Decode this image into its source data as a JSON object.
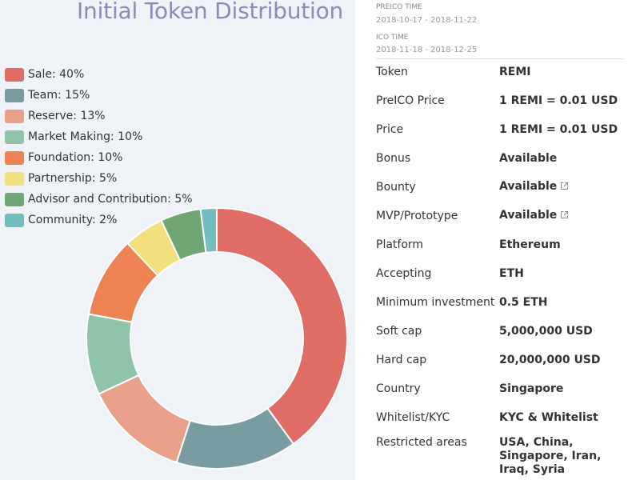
{
  "chart_data": {
    "type": "pie",
    "title": "Initial Token Distribution",
    "legend_position": "top-left",
    "slices": [
      {
        "label": "Sale: 40%",
        "value": 40,
        "color": "#e06c66"
      },
      {
        "label": "Team: 15%",
        "value": 15,
        "color": "#789ca2"
      },
      {
        "label": "Reserve: 13%",
        "value": 13,
        "color": "#e9a08a"
      },
      {
        "label": "Market Making: 10%",
        "value": 10,
        "color": "#8fc3aa"
      },
      {
        "label": "Foundation: 10%",
        "value": 10,
        "color": "#ed8352"
      },
      {
        "label": "Partnership: 5%",
        "value": 5,
        "color": "#f2df7d"
      },
      {
        "label": "Advisor and Contribution: 5%",
        "value": 5,
        "color": "#6fa673"
      },
      {
        "label": "Community: 2%",
        "value": 2,
        "color": "#72bdc0"
      }
    ]
  },
  "preico": {
    "label": "PREICO TIME",
    "dates": "2018-10-17 - 2018-11-22"
  },
  "ico": {
    "label": "ICO TIME",
    "dates": "2018-11-18 - 2018-12-25"
  },
  "details": [
    {
      "key": "Token",
      "value": "REMI",
      "link": false
    },
    {
      "key": "PreICO Price",
      "value": "1 REMI = 0.01 USD",
      "link": false
    },
    {
      "key": "Price",
      "value": "1 REMI = 0.01 USD",
      "link": false
    },
    {
      "key": "Bonus",
      "value": "Available",
      "link": false
    },
    {
      "key": "Bounty",
      "value": "Available",
      "link": true
    },
    {
      "key": "MVP/Prototype",
      "value": "Available",
      "link": true
    },
    {
      "key": "Platform",
      "value": "Ethereum",
      "link": false
    },
    {
      "key": "Accepting",
      "value": "ETH",
      "link": false
    },
    {
      "key": "Minimum investment",
      "value": "0.5 ETH",
      "link": false
    },
    {
      "key": "Soft cap",
      "value": "5,000,000 USD",
      "link": false
    },
    {
      "key": "Hard cap",
      "value": "20,000,000 USD",
      "link": false
    },
    {
      "key": "Country",
      "value": "Singapore",
      "link": false
    },
    {
      "key": "Whitelist/KYC",
      "value": "KYC & Whitelist",
      "link": false
    },
    {
      "key": "Restricted areas",
      "value": "USA, China, Singapore, Iran, Iraq, Syria",
      "link": false
    }
  ],
  "icons": {
    "external_link": "external-link-icon"
  }
}
